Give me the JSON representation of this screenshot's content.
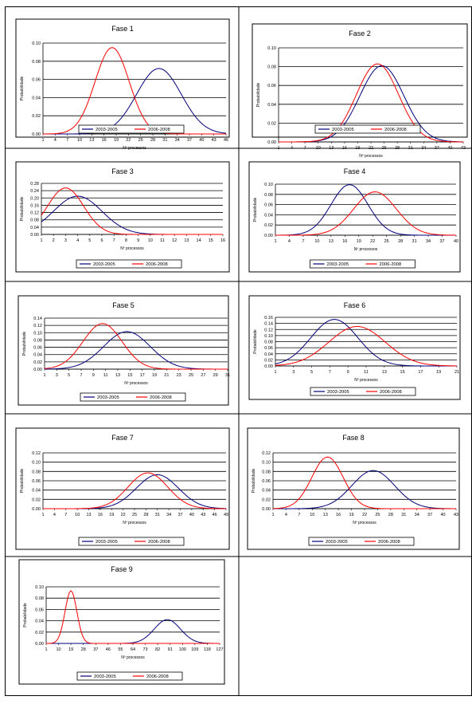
{
  "legend": {
    "series1": "2003-2005",
    "series2": "2006-2008"
  },
  "series_colors": {
    "series1": "#00007a",
    "series2": "#ff0000"
  },
  "chart_data": [
    {
      "type": "line",
      "title": "Fase 1",
      "ylabel": "Probabilidade",
      "xlabel": "Nº processos",
      "ylim": [
        0,
        0.1
      ],
      "yticks": [
        "0.00",
        "0.02",
        "0.04",
        "0.06",
        "0.08",
        "0.10"
      ],
      "xlim": [
        1,
        46
      ],
      "xticks": [
        1,
        4,
        7,
        10,
        13,
        16,
        19,
        22,
        25,
        28,
        31,
        34,
        37,
        40,
        43,
        46
      ],
      "legend_position": "bottom",
      "series": [
        {
          "name": "2003-2005",
          "color": "#00007a",
          "peak_x": 29.5,
          "peak_y": 0.072,
          "sd": 5.5
        },
        {
          "name": "2006-2008",
          "color": "#ff0000",
          "peak_x": 18,
          "peak_y": 0.095,
          "sd": 4.2
        }
      ]
    },
    {
      "type": "line",
      "title": "Fase 2",
      "ylabel": "Probabilidade",
      "xlabel": "Nº processos",
      "ylim": [
        0,
        0.1
      ],
      "yticks": [
        "0.00",
        "0.02",
        "0.04",
        "0.06",
        "0.08",
        "0.10"
      ],
      "xlim": [
        1,
        43
      ],
      "xticks": [
        1,
        4,
        7,
        10,
        13,
        16,
        19,
        22,
        25,
        28,
        31,
        34,
        37,
        40,
        43
      ],
      "legend_position": "bottom",
      "series": [
        {
          "name": "2003-2005",
          "color": "#00007a",
          "peak_x": 24.5,
          "peak_y": 0.081,
          "sd": 5
        },
        {
          "name": "2006-2008",
          "color": "#ff0000",
          "peak_x": 23.5,
          "peak_y": 0.083,
          "sd": 4.8
        }
      ]
    },
    {
      "type": "line",
      "title": "Fase 3",
      "ylabel": "Probabilidade",
      "xlabel": "Nº processos",
      "ylim": [
        0,
        0.28
      ],
      "yticks": [
        "0.00",
        "0.04",
        "0.08",
        "0.12",
        "0.16",
        "0.20",
        "0.24",
        "0.28"
      ],
      "xlim": [
        1,
        16
      ],
      "xticks": [
        1,
        2,
        3,
        4,
        5,
        6,
        7,
        8,
        9,
        10,
        11,
        12,
        13,
        14,
        15,
        16
      ],
      "legend_position": "bottom",
      "series": [
        {
          "name": "2003-2005",
          "color": "#00007a",
          "peak_x": 4,
          "peak_y": 0.21,
          "sd": 2
        },
        {
          "name": "2006-2008",
          "color": "#ff0000",
          "peak_x": 3,
          "peak_y": 0.255,
          "sd": 1.5
        }
      ]
    },
    {
      "type": "line",
      "title": "Fase 4",
      "ylabel": "Probabilidade",
      "xlabel": "Nº processos",
      "ylim": [
        0,
        0.1
      ],
      "yticks": [
        "0.00",
        "0.02",
        "0.04",
        "0.06",
        "0.08",
        "0.10"
      ],
      "xlim": [
        1,
        40
      ],
      "xticks": [
        1,
        4,
        7,
        10,
        13,
        16,
        19,
        22,
        25,
        28,
        31,
        34,
        37,
        40
      ],
      "legend_position": "bottom",
      "series": [
        {
          "name": "2003-2005",
          "color": "#00007a",
          "peak_x": 17,
          "peak_y": 0.099,
          "sd": 4
        },
        {
          "name": "2006-2008",
          "color": "#ff0000",
          "peak_x": 22.5,
          "peak_y": 0.085,
          "sd": 4.6
        }
      ]
    },
    {
      "type": "line",
      "title": "Fase 5",
      "ylabel": "Probabilidade",
      "xlabel": "Nº processos",
      "ylim": [
        0,
        0.14
      ],
      "yticks": [
        "0.00",
        "0.02",
        "0.04",
        "0.06",
        "0.08",
        "0.10",
        "0.12",
        "0.14"
      ],
      "xlim": [
        1,
        31
      ],
      "xticks": [
        1,
        3,
        5,
        7,
        9,
        11,
        13,
        15,
        17,
        19,
        21,
        23,
        25,
        27,
        29,
        31
      ],
      "legend_position": "bottom",
      "series": [
        {
          "name": "2003-2005",
          "color": "#00007a",
          "peak_x": 14.5,
          "peak_y": 0.103,
          "sd": 3.8
        },
        {
          "name": "2006-2008",
          "color": "#ff0000",
          "peak_x": 10.5,
          "peak_y": 0.125,
          "sd": 3.2
        }
      ]
    },
    {
      "type": "line",
      "title": "Fase 6",
      "ylabel": "Probabilidade",
      "xlabel": "Nº processos",
      "ylim": [
        0,
        0.16
      ],
      "yticks": [
        "0.00",
        "0.02",
        "0.04",
        "0.06",
        "0.08",
        "0.10",
        "0.12",
        "0.14",
        "0.16"
      ],
      "xlim": [
        1,
        21
      ],
      "xticks": [
        1,
        3,
        5,
        7,
        9,
        11,
        13,
        15,
        17,
        19,
        21
      ],
      "legend_position": "bottom",
      "series": [
        {
          "name": "2003-2005",
          "color": "#00007a",
          "peak_x": 7.5,
          "peak_y": 0.153,
          "sd": 2.6
        },
        {
          "name": "2006-2008",
          "color": "#ff0000",
          "peak_x": 10,
          "peak_y": 0.13,
          "sd": 3.1
        }
      ]
    },
    {
      "type": "line",
      "title": "Fase 7",
      "ylabel": "Probabilidade",
      "xlabel": "Nº processos",
      "ylim": [
        0,
        0.12
      ],
      "yticks": [
        "0.00",
        "0.02",
        "0.04",
        "0.06",
        "0.08",
        "0.10",
        "0.12"
      ],
      "xlim": [
        1,
        49
      ],
      "xticks": [
        1,
        4,
        7,
        10,
        13,
        16,
        19,
        22,
        25,
        28,
        31,
        34,
        37,
        40,
        43,
        46,
        49
      ],
      "legend_position": "bottom",
      "series": [
        {
          "name": "2003-2005",
          "color": "#00007a",
          "peak_x": 31,
          "peak_y": 0.073,
          "sd": 5.5
        },
        {
          "name": "2006-2008",
          "color": "#ff0000",
          "peak_x": 28.5,
          "peak_y": 0.077,
          "sd": 5.2
        }
      ]
    },
    {
      "type": "line",
      "title": "Fase 8",
      "ylabel": "Probabilidade",
      "xlabel": "Nº processos",
      "ylim": [
        0,
        0.12
      ],
      "yticks": [
        "0.00",
        "0.02",
        "0.04",
        "0.06",
        "0.08",
        "0.10",
        "0.12"
      ],
      "xlim": [
        1,
        43
      ],
      "xticks": [
        1,
        4,
        7,
        10,
        13,
        16,
        19,
        22,
        25,
        28,
        31,
        34,
        37,
        40,
        43
      ],
      "legend_position": "bottom",
      "series": [
        {
          "name": "2003-2005",
          "color": "#00007a",
          "peak_x": 24,
          "peak_y": 0.082,
          "sd": 4.9
        },
        {
          "name": "2006-2008",
          "color": "#ff0000",
          "peak_x": 13.5,
          "peak_y": 0.111,
          "sd": 3.6
        }
      ]
    },
    {
      "type": "line",
      "title": "Fase 9",
      "ylabel": "Probabilidade",
      "xlabel": "Nº processos",
      "ylim": [
        0,
        0.1
      ],
      "yticks": [
        "0.00",
        "0.02",
        "0.04",
        "0.06",
        "0.08",
        "0.10"
      ],
      "xlim": [
        1,
        127
      ],
      "xticks": [
        1,
        10,
        19,
        28,
        37,
        46,
        55,
        64,
        73,
        82,
        91,
        100,
        109,
        118,
        127
      ],
      "legend_position": "bottom",
      "series": [
        {
          "name": "2003-2005",
          "color": "#00007a",
          "peak_x": 89,
          "peak_y": 0.042,
          "sd": 9.5
        },
        {
          "name": "2006-2008",
          "color": "#ff0000",
          "peak_x": 19,
          "peak_y": 0.093,
          "sd": 4.3
        }
      ]
    }
  ]
}
